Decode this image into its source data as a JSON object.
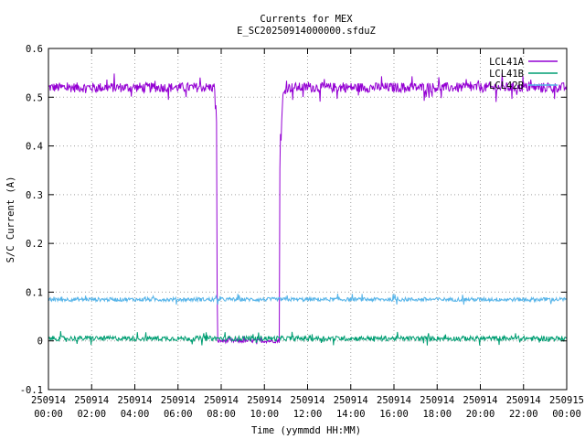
{
  "chart_data": {
    "type": "line",
    "title": "Currents for MEX",
    "subtitle": "E_SC20250914000000.sfduZ",
    "xlabel": "Time (yymmdd HH:MM)",
    "ylabel": "S/C Current (A)",
    "ylim": [
      -0.1,
      0.6
    ],
    "xlim_hours": [
      0,
      24
    ],
    "y_ticks": [
      "-0.1",
      "0",
      "0.1",
      "0.2",
      "0.3",
      "0.4",
      "0.5",
      "0.6"
    ],
    "x_ticks": [
      {
        "date": "250914",
        "time": "00:00"
      },
      {
        "date": "250914",
        "time": "02:00"
      },
      {
        "date": "250914",
        "time": "04:00"
      },
      {
        "date": "250914",
        "time": "06:00"
      },
      {
        "date": "250914",
        "time": "08:00"
      },
      {
        "date": "250914",
        "time": "10:00"
      },
      {
        "date": "250914",
        "time": "12:00"
      },
      {
        "date": "250914",
        "time": "14:00"
      },
      {
        "date": "250914",
        "time": "16:00"
      },
      {
        "date": "250914",
        "time": "18:00"
      },
      {
        "date": "250914",
        "time": "20:00"
      },
      {
        "date": "250914",
        "time": "22:00"
      },
      {
        "date": "250915",
        "time": "00:00"
      }
    ],
    "grid": true,
    "legend_position": "top-right",
    "series": [
      {
        "name": "LCL41A",
        "color": "#9400d3",
        "x": [
          0,
          7.7,
          7.72,
          7.78,
          7.82,
          10.7,
          10.72,
          10.78,
          10.85,
          11.0,
          24
        ],
        "y": [
          0.52,
          0.52,
          0.48,
          0.48,
          0.0,
          0.0,
          0.42,
          0.42,
          0.5,
          0.52,
          0.52
        ],
        "noise": 0.01
      },
      {
        "name": "LCL41B",
        "color": "#009e73",
        "x": [
          0,
          24
        ],
        "y": [
          0.005,
          0.005
        ],
        "noise": 0.005
      },
      {
        "name": "LCL42B",
        "color": "#56b4e9",
        "x": [
          0,
          24
        ],
        "y": [
          0.085,
          0.085
        ],
        "noise": 0.004
      }
    ]
  }
}
